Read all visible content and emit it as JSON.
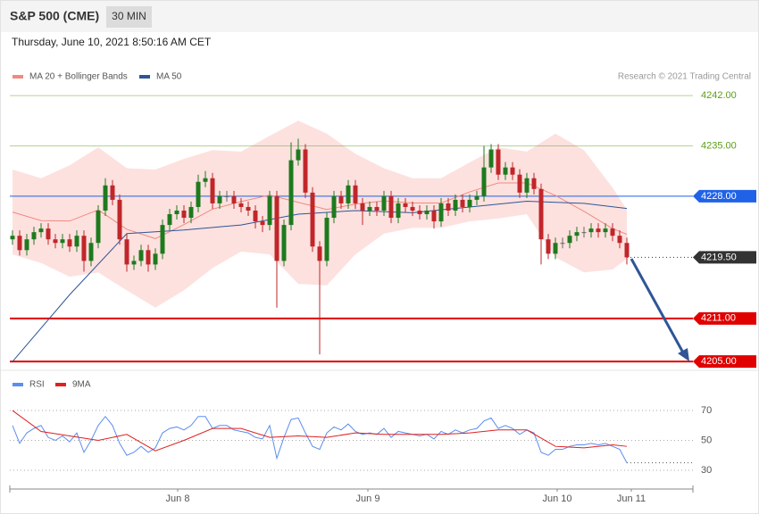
{
  "header": {
    "title": "S&P 500 (CME)",
    "interval": "30 MIN",
    "timestamp": "Thursday, June 10, 2021 8:50:16 AM CET"
  },
  "chart_data": [
    {
      "type": "candlestick",
      "source": "Research © 2021 Trading Central",
      "up_color": "#1e7a1e",
      "down_color": "#c0262a",
      "flat_color": "#666666",
      "x": [
        0,
        1,
        2,
        3,
        4,
        5,
        6,
        7,
        8,
        9,
        10,
        11,
        12,
        13,
        14,
        15,
        16,
        17,
        18,
        19,
        20,
        21,
        22,
        23,
        24,
        25,
        26,
        27,
        28,
        29,
        30,
        31,
        32,
        33,
        34,
        35,
        36,
        37,
        38,
        39,
        40,
        41,
        42,
        43,
        44,
        45,
        46,
        47,
        48,
        49,
        50,
        51,
        52,
        53,
        54,
        55,
        56,
        57,
        58,
        59,
        60,
        61,
        62,
        63,
        64,
        65,
        66,
        67,
        68,
        69,
        70,
        71,
        72,
        73,
        74,
        75,
        76,
        77,
        78,
        79,
        80,
        81,
        82,
        83,
        84,
        85,
        86
      ],
      "open": [
        4222,
        4222.5,
        4220.5,
        4222,
        4223,
        4223.5,
        4222,
        4221.5,
        4222,
        4221,
        4222.5,
        4219,
        4221.5,
        4226,
        4229.5,
        4227.5,
        4222,
        4218.5,
        4219,
        4220.5,
        4218.5,
        4220,
        4224,
        4225.5,
        4226,
        4225,
        4226.5,
        4230,
        4230.5,
        4227,
        4228,
        4228,
        4227,
        4226.5,
        4226,
        4224.5,
        4224,
        4228,
        4219,
        4224,
        4233,
        4234.5,
        4228.5,
        4221,
        4219,
        4225,
        4228,
        4227,
        4229.5,
        4227,
        4226,
        4226.5,
        4226,
        4228,
        4225,
        4227,
        4226.5,
        4226,
        4225.5,
        4226,
        4224.5,
        4227,
        4226,
        4227.5,
        4226.5,
        4227.5,
        4228,
        4232,
        4234.5,
        4231,
        4232,
        4231,
        4228.5,
        4230.5,
        4229,
        4222,
        4220,
        4221.5,
        4221.5,
        4222.5,
        4223,
        4223,
        4223.5,
        4223,
        4223.5,
        4222.5,
        4221.5
      ],
      "high": [
        4223.25,
        4223.25,
        4222.75,
        4223.75,
        4224.25,
        4224.25,
        4222.75,
        4222.75,
        4222.75,
        4223.25,
        4223.25,
        4222.25,
        4226.75,
        4230.5,
        4230.25,
        4228.25,
        4222.75,
        4219.75,
        4221.25,
        4221.25,
        4220.75,
        4224.75,
        4226.25,
        4226.75,
        4226.75,
        4227.25,
        4231,
        4231.5,
        4231.25,
        4228.75,
        4228.75,
        4228.75,
        4227.75,
        4227.25,
        4226.75,
        4225.25,
        4228.75,
        4228.75,
        4224.75,
        4235.5,
        4236,
        4235.25,
        4229.25,
        4221.75,
        4225.75,
        4228.75,
        4228.75,
        4230.25,
        4230.25,
        4227.75,
        4227.25,
        4227.25,
        4228.75,
        4228.75,
        4227.75,
        4227.75,
        4227.25,
        4226.75,
        4226.75,
        4226.75,
        4227.75,
        4227.75,
        4228.25,
        4228.25,
        4228.25,
        4228.75,
        4235,
        4235.25,
        4235.25,
        4232.75,
        4232.75,
        4231.75,
        4231.25,
        4231.25,
        4229.75,
        4222.75,
        4222.25,
        4222.25,
        4223.25,
        4223.75,
        4223.75,
        4224.25,
        4224.25,
        4224.25,
        4224.25,
        4223.25,
        4222.25
      ],
      "low": [
        4221.25,
        4219.75,
        4219.75,
        4221.25,
        4222.25,
        4221.25,
        4220.75,
        4220.75,
        4220.25,
        4220.25,
        4217.5,
        4218.25,
        4220.75,
        4225.25,
        4226.75,
        4221.25,
        4217.5,
        4217.75,
        4218.25,
        4217.5,
        4217.75,
        4219.25,
        4223.25,
        4224.75,
        4224.25,
        4224.25,
        4225.75,
        4229.25,
        4226.25,
        4226.25,
        4227.25,
        4226.25,
        4225.75,
        4225.25,
        4223.5,
        4223,
        4223.25,
        4212.5,
        4218.25,
        4223.25,
        4232.25,
        4227.75,
        4220.25,
        4206,
        4218.25,
        4224.25,
        4226.25,
        4226.25,
        4226.25,
        4224,
        4225.25,
        4225.25,
        4225.25,
        4224.25,
        4224.25,
        4225.75,
        4225.25,
        4224.75,
        4224.75,
        4223.5,
        4223.75,
        4225.25,
        4225.25,
        4225.75,
        4225.75,
        4226.75,
        4227.25,
        4231.25,
        4230.25,
        4230.25,
        4230.25,
        4227.75,
        4227.75,
        4228.25,
        4218.5,
        4219.25,
        4219.25,
        4220.75,
        4220.75,
        4221.75,
        4222.25,
        4222.25,
        4222.25,
        4222.25,
        4221.75,
        4220.75,
        4218.5
      ],
      "close": [
        4222.5,
        4220.5,
        4222,
        4223,
        4223.5,
        4222,
        4221.5,
        4222,
        4221,
        4222.5,
        4219,
        4221.5,
        4226,
        4229.5,
        4227.5,
        4222,
        4218.5,
        4219,
        4220.5,
        4218.5,
        4220,
        4224,
        4225.5,
        4226,
        4225,
        4226.5,
        4230,
        4230.5,
        4227,
        4228,
        4228,
        4227,
        4226.5,
        4226,
        4224.5,
        4224,
        4228,
        4219,
        4224,
        4233,
        4234.5,
        4228.5,
        4221,
        4219,
        4225,
        4228,
        4227,
        4229.5,
        4227,
        4226,
        4226.5,
        4226,
        4228,
        4225,
        4227,
        4226.5,
        4226,
        4225.5,
        4226,
        4224.5,
        4227,
        4226,
        4227.5,
        4226.5,
        4227.5,
        4228,
        4232,
        4234.5,
        4231,
        4232,
        4231,
        4228.5,
        4230.5,
        4229,
        4222,
        4220,
        4221.5,
        4221.5,
        4222.5,
        4223,
        4223,
        4223.5,
        4223,
        4223.5,
        4222.5,
        4221.5,
        4219.5
      ],
      "series": [
        {
          "name": "MA 20 + Bollinger Bands",
          "color": "#f08a80",
          "band_color": "#fde1df",
          "x": [
            0,
            4,
            8,
            12,
            16,
            20,
            24,
            28,
            32,
            36,
            40,
            44,
            48,
            52,
            56,
            60,
            64,
            68,
            72,
            76,
            80,
            84,
            86
          ],
          "values": [
            4225.8,
            4224.6,
            4224.55,
            4226.1,
            4223.4,
            4222.1,
            4224.05,
            4226.2,
            4227.25,
            4228.15,
            4227.15,
            4226.15,
            4226.9,
            4227.35,
            4227.05,
            4227.05,
            4228.6,
            4229.85,
            4229.85,
            4228.1,
            4225.9,
            4223.5,
            4222.7
          ],
          "upper": [
            4231.7,
            4230.5,
            4232.3,
            4234.8,
            4231.9,
            4231.7,
            4233.2,
            4234.4,
            4234.2,
            4236.4,
            4238.5,
            4236.7,
            4233.9,
            4231.9,
            4230.5,
            4230.5,
            4232.7,
            4234.8,
            4234.2,
            4236.7,
            4234.4,
            4229.2,
            4226.1
          ],
          "lower": [
            4219.9,
            4218.7,
            4216.8,
            4217.4,
            4214.9,
            4212.5,
            4214.9,
            4218,
            4220.3,
            4219.9,
            4215.8,
            4215.6,
            4219.9,
            4222.8,
            4223.6,
            4223.6,
            4224.5,
            4224.9,
            4225.5,
            4219.5,
            4217.4,
            4217.8,
            4219.3
          ]
        },
        {
          "name": "MA 50",
          "color": "#2f5597",
          "x": [
            0,
            8,
            16,
            24,
            32,
            40,
            48,
            56,
            64,
            72,
            80,
            86
          ],
          "values": [
            4205,
            4214.3,
            4222.8,
            4223.3,
            4224,
            4225.5,
            4226,
            4225.7,
            4226.5,
            4227.3,
            4227,
            4226.3
          ]
        }
      ],
      "xlim": [
        -0.375,
        95.25
      ],
      "ylim": [
        4204.4,
        4243.5
      ],
      "xticks": [
        {
          "value": 23.125,
          "label": "Jun 8"
        },
        {
          "value": 49.75,
          "label": "Jun 9"
        },
        {
          "value": 76.25,
          "label": "Jun 10"
        },
        {
          "value": 86.625,
          "label": "Jun 11"
        }
      ],
      "levels": [
        {
          "value": 4242,
          "label": "4242.00",
          "color": "#5a9e16",
          "tag": false,
          "line": "solid"
        },
        {
          "value": 4235,
          "label": "4235.00",
          "color": "#5a9e16",
          "tag": false,
          "line": "solid"
        },
        {
          "value": 4228,
          "label": "4228.00",
          "color": "#1f62e8",
          "tag": true,
          "line": "solid"
        },
        {
          "value": 4219.5,
          "label": "4219.50",
          "color": "#333333",
          "tag": true,
          "line": "dotted"
        },
        {
          "value": 4211,
          "label": "4211.00",
          "color": "#e00000",
          "tag": true,
          "line": "solid"
        },
        {
          "value": 4205,
          "label": "4205.00",
          "color": "#e00000",
          "tag": true,
          "line": "solid"
        }
      ]
    },
    {
      "type": "line",
      "series": [
        {
          "name": "RSI",
          "color": "#5b8def",
          "x": [
            0,
            1,
            2,
            3,
            4,
            5,
            6,
            7,
            8,
            9,
            10,
            11,
            12,
            13,
            14,
            15,
            16,
            17,
            18,
            19,
            20,
            21,
            22,
            23,
            24,
            25,
            26,
            27,
            28,
            29,
            30,
            31,
            32,
            33,
            34,
            35,
            36,
            37,
            38,
            39,
            40,
            41,
            42,
            43,
            44,
            45,
            46,
            47,
            48,
            49,
            50,
            51,
            52,
            53,
            54,
            55,
            56,
            57,
            58,
            59,
            60,
            61,
            62,
            63,
            64,
            65,
            66,
            67,
            68,
            69,
            70,
            71,
            72,
            73,
            74,
            75,
            76,
            77,
            78,
            79,
            80,
            81,
            82,
            83,
            84,
            85,
            86
          ],
          "values": [
            60,
            48,
            55,
            58,
            60,
            52,
            50,
            53,
            49,
            55,
            42,
            50,
            60,
            66,
            60,
            48,
            40,
            42,
            46,
            42,
            45,
            55,
            58,
            59,
            57,
            60,
            66,
            66,
            58,
            60,
            60,
            57,
            56,
            55,
            52,
            51,
            60,
            38,
            52,
            64,
            65,
            55,
            46,
            44,
            55,
            59,
            57,
            61,
            56,
            54,
            55,
            54,
            58,
            52,
            56,
            55,
            54,
            53,
            54,
            51,
            56,
            54,
            57,
            55,
            57,
            58,
            63,
            65,
            58,
            60,
            58,
            54,
            57,
            55,
            42,
            40,
            44,
            44,
            46,
            47,
            47,
            48,
            47,
            48,
            46,
            44,
            35
          ]
        },
        {
          "name": "9MA",
          "color": "#e02020",
          "x": [
            0,
            4,
            8,
            12,
            16,
            20,
            24,
            28,
            32,
            36,
            40,
            44,
            48,
            52,
            56,
            60,
            64,
            68,
            72,
            76,
            80,
            84,
            86
          ],
          "values": [
            70,
            56,
            53,
            50,
            54,
            43,
            50,
            58,
            58,
            52,
            53,
            52,
            55,
            54,
            54,
            54,
            55,
            57,
            57,
            46,
            45,
            47,
            46
          ]
        }
      ],
      "ylim": [
        22.2,
        79
      ],
      "yticks": [
        70,
        50,
        30
      ],
      "grid": true
    }
  ]
}
